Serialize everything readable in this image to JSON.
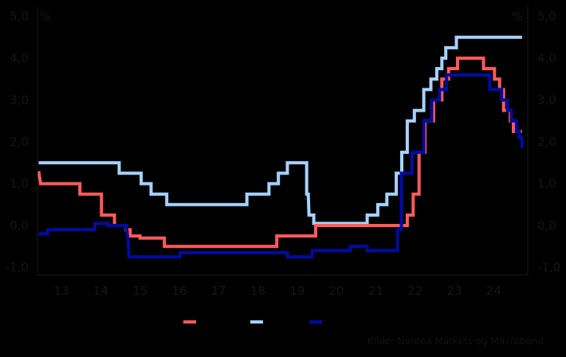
{
  "chart_data": {
    "type": "line",
    "title": "",
    "xlabel": "",
    "ylabel": "%",
    "y_left_unit": "%",
    "y_right_unit": "%",
    "ylim": [
      -1.0,
      5.0
    ],
    "yticks": [
      "5,0",
      "4,0",
      "3,0",
      "2,0",
      "1,0",
      "0,0",
      "-1,0"
    ],
    "ytick_values": [
      5,
      4,
      3,
      2,
      1,
      0,
      -1
    ],
    "xlim": [
      2012.9,
      2025.4
    ],
    "xticks": [
      "13",
      "14",
      "15",
      "16",
      "17",
      "18",
      "19",
      "20",
      "21",
      "22",
      "23",
      "24"
    ],
    "xtick_values": [
      2013,
      2014,
      2015,
      2016,
      2017,
      2018,
      2019,
      2020,
      2021,
      2022,
      2023,
      2024
    ],
    "grid": false,
    "legend_position": "bottom",
    "step": true,
    "series": [
      {
        "name": "",
        "color": "#FF5A5A",
        "points": [
          [
            2012.92,
            1.3
          ],
          [
            2012.97,
            1.0
          ],
          [
            2013.97,
            1.0
          ],
          [
            2013.97,
            0.75
          ],
          [
            2014.52,
            0.75
          ],
          [
            2014.52,
            0.25
          ],
          [
            2014.85,
            0.25
          ],
          [
            2014.85,
            0.0
          ],
          [
            2015.15,
            0.0
          ],
          [
            2015.15,
            -0.1
          ],
          [
            2015.25,
            -0.1
          ],
          [
            2015.25,
            -0.25
          ],
          [
            2015.5,
            -0.25
          ],
          [
            2015.5,
            -0.3
          ],
          [
            2016.12,
            -0.3
          ],
          [
            2016.12,
            -0.5
          ],
          [
            2018.98,
            -0.5
          ],
          [
            2018.98,
            -0.25
          ],
          [
            2019.97,
            -0.25
          ],
          [
            2019.97,
            0.0
          ],
          [
            2022.3,
            0.0
          ],
          [
            2022.3,
            0.25
          ],
          [
            2022.45,
            0.25
          ],
          [
            2022.45,
            0.75
          ],
          [
            2022.6,
            0.75
          ],
          [
            2022.6,
            1.75
          ],
          [
            2022.75,
            1.75
          ],
          [
            2022.75,
            2.5
          ],
          [
            2022.97,
            2.5
          ],
          [
            2022.97,
            3.0
          ],
          [
            2023.18,
            3.0
          ],
          [
            2023.18,
            3.5
          ],
          [
            2023.35,
            3.5
          ],
          [
            2023.35,
            3.75
          ],
          [
            2023.58,
            3.75
          ],
          [
            2023.58,
            4.0
          ],
          [
            2024.24,
            4.0
          ],
          [
            2024.24,
            3.75
          ],
          [
            2024.52,
            3.75
          ],
          [
            2024.52,
            3.5
          ],
          [
            2024.65,
            3.5
          ],
          [
            2024.65,
            3.25
          ],
          [
            2024.75,
            3.25
          ],
          [
            2024.75,
            2.75
          ],
          [
            2024.92,
            2.75
          ],
          [
            2024.92,
            2.5
          ],
          [
            2025.0,
            2.5
          ],
          [
            2025.0,
            2.25
          ],
          [
            2025.22,
            2.25
          ]
        ]
      },
      {
        "name": "",
        "color": "#A6D2FF",
        "points": [
          [
            2012.92,
            1.5
          ],
          [
            2014.97,
            1.5
          ],
          [
            2014.97,
            1.25
          ],
          [
            2015.53,
            1.25
          ],
          [
            2015.53,
            1.0
          ],
          [
            2015.78,
            1.0
          ],
          [
            2015.78,
            0.75
          ],
          [
            2016.18,
            0.75
          ],
          [
            2016.18,
            0.5
          ],
          [
            2018.22,
            0.5
          ],
          [
            2018.22,
            0.75
          ],
          [
            2018.78,
            0.75
          ],
          [
            2018.78,
            1.0
          ],
          [
            2019.02,
            1.0
          ],
          [
            2019.02,
            1.25
          ],
          [
            2019.25,
            1.25
          ],
          [
            2019.25,
            1.5
          ],
          [
            2019.74,
            1.5
          ],
          [
            2019.74,
            0.75
          ],
          [
            2019.78,
            0.75
          ],
          [
            2019.8,
            0.25
          ],
          [
            2019.92,
            0.25
          ],
          [
            2019.92,
            0.05
          ],
          [
            2021.28,
            0.05
          ],
          [
            2021.28,
            0.25
          ],
          [
            2021.55,
            0.25
          ],
          [
            2021.55,
            0.5
          ],
          [
            2021.78,
            0.5
          ],
          [
            2021.78,
            0.75
          ],
          [
            2022.02,
            0.75
          ],
          [
            2022.02,
            1.25
          ],
          [
            2022.16,
            1.25
          ],
          [
            2022.16,
            1.75
          ],
          [
            2022.3,
            1.75
          ],
          [
            2022.3,
            2.5
          ],
          [
            2022.48,
            2.5
          ],
          [
            2022.48,
            2.75
          ],
          [
            2022.72,
            2.75
          ],
          [
            2022.72,
            3.25
          ],
          [
            2022.9,
            3.25
          ],
          [
            2022.9,
            3.5
          ],
          [
            2023.05,
            3.5
          ],
          [
            2023.05,
            3.75
          ],
          [
            2023.18,
            3.75
          ],
          [
            2023.18,
            4.0
          ],
          [
            2023.28,
            4.0
          ],
          [
            2023.28,
            4.25
          ],
          [
            2023.55,
            4.25
          ],
          [
            2023.55,
            4.5
          ],
          [
            2025.22,
            4.5
          ]
        ]
      },
      {
        "name": "",
        "color": "#000CA0",
        "points": [
          [
            2012.92,
            -0.2
          ],
          [
            2013.15,
            -0.2
          ],
          [
            2013.15,
            -0.1
          ],
          [
            2014.35,
            -0.1
          ],
          [
            2014.35,
            0.05
          ],
          [
            2014.68,
            0.05
          ],
          [
            2014.68,
            0.0
          ],
          [
            2015.15,
            0.0
          ],
          [
            2015.2,
            -0.4
          ],
          [
            2015.22,
            -0.75
          ],
          [
            2016.52,
            -0.75
          ],
          [
            2016.52,
            -0.65
          ],
          [
            2019.25,
            -0.65
          ],
          [
            2019.25,
            -0.75
          ],
          [
            2019.88,
            -0.75
          ],
          [
            2019.88,
            -0.6
          ],
          [
            2020.85,
            -0.6
          ],
          [
            2020.85,
            -0.5
          ],
          [
            2021.28,
            -0.5
          ],
          [
            2021.28,
            -0.6
          ],
          [
            2022.05,
            -0.6
          ],
          [
            2022.05,
            -0.1
          ],
          [
            2022.15,
            -0.1
          ],
          [
            2022.15,
            1.25
          ],
          [
            2022.42,
            1.25
          ],
          [
            2022.42,
            1.75
          ],
          [
            2022.72,
            1.75
          ],
          [
            2022.72,
            2.5
          ],
          [
            2022.92,
            2.5
          ],
          [
            2022.92,
            3.0
          ],
          [
            2023.12,
            3.0
          ],
          [
            2023.12,
            3.25
          ],
          [
            2023.3,
            3.25
          ],
          [
            2023.3,
            3.6
          ],
          [
            2024.4,
            3.6
          ],
          [
            2024.4,
            3.25
          ],
          [
            2024.7,
            3.25
          ],
          [
            2024.7,
            3.0
          ],
          [
            2024.85,
            3.0
          ],
          [
            2024.85,
            2.75
          ],
          [
            2024.95,
            2.75
          ],
          [
            2024.95,
            2.5
          ],
          [
            2025.08,
            2.5
          ],
          [
            2025.08,
            2.25
          ],
          [
            2025.15,
            2.25
          ],
          [
            2025.15,
            2.1
          ],
          [
            2025.22,
            2.1
          ],
          [
            2025.22,
            1.85
          ]
        ]
      }
    ]
  },
  "axes": {
    "left_unit": "%",
    "right_unit": "%"
  },
  "legend": [
    {
      "label": "",
      "color": "#FF5A5A"
    },
    {
      "label": "",
      "color": "#A6D2FF"
    },
    {
      "label": "",
      "color": "#000CA0"
    }
  ],
  "source": "Kilde: Nordea Markets og Macrobond"
}
